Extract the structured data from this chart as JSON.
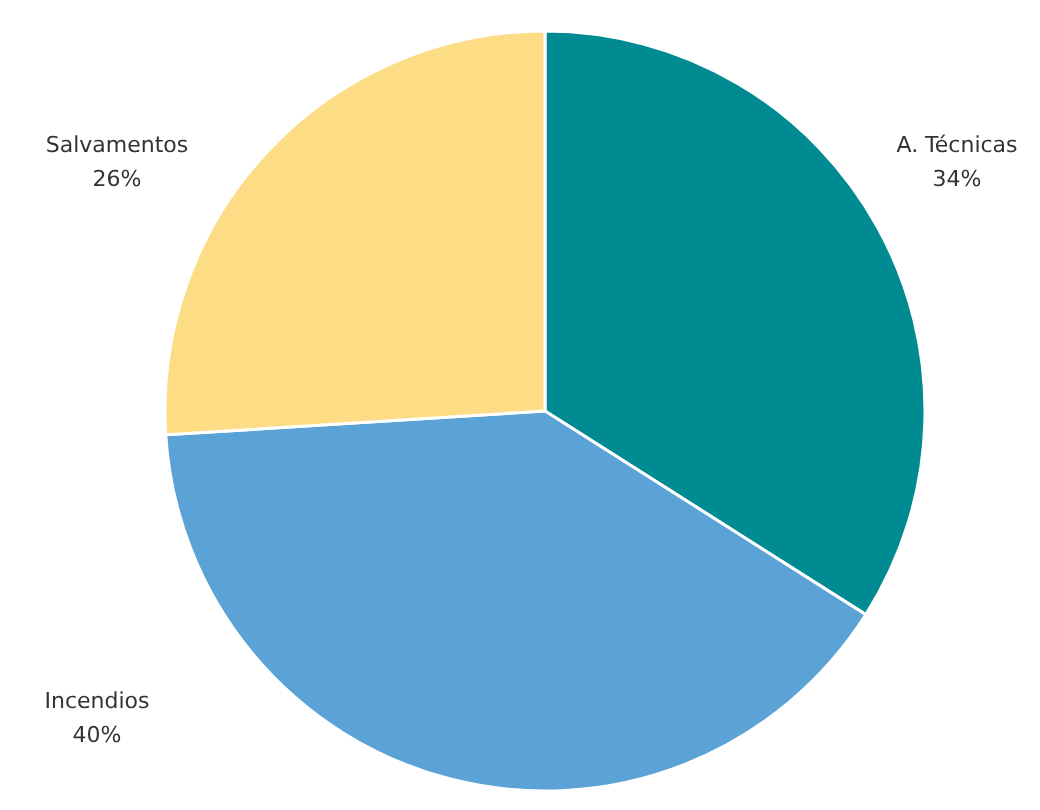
{
  "chart_data": {
    "type": "pie",
    "categories": [
      "A. Técnicas",
      "Incendios",
      "Salvamentos"
    ],
    "values": [
      34,
      40,
      26
    ],
    "value_labels": [
      "34%",
      "40%",
      "26%"
    ],
    "colors": [
      "#008b92",
      "#5ba3d6",
      "#fcdc84"
    ]
  }
}
